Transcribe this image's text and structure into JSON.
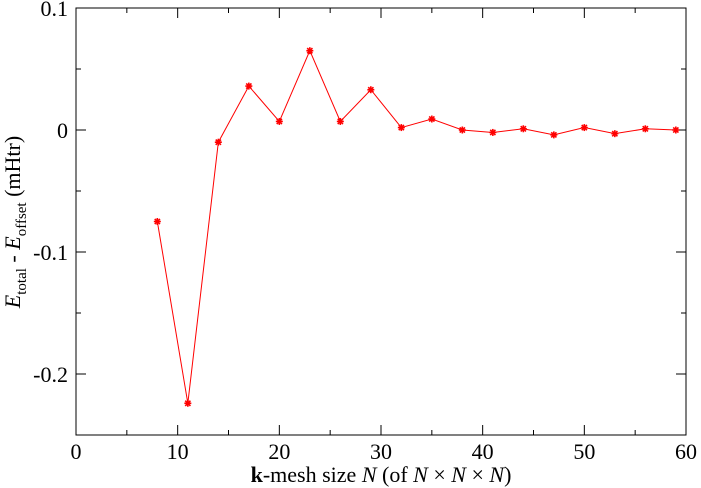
{
  "chart_data": {
    "type": "line",
    "title": "",
    "xlabel": {
      "bold": "k",
      "pre": "-mesh size ",
      "italic1": "N",
      "mid": " (of ",
      "italic2": "N",
      "times1": " × ",
      "italic3": "N",
      "times2": " × ",
      "italic4": "N",
      "post": ")"
    },
    "ylabel": {
      "e1": "E",
      "sub1": "total",
      "minus": " - ",
      "e2": "E",
      "sub2": "offset",
      "unit": " (mHtr)"
    },
    "xlim": [
      0,
      60
    ],
    "ylim": [
      -0.25,
      0.1
    ],
    "xticks": [
      0,
      10,
      20,
      30,
      40,
      50,
      60
    ],
    "xtick_labels": [
      "0",
      "10",
      "20",
      "30",
      "40",
      "50",
      "60"
    ],
    "yticks": [
      0.1,
      0,
      -0.1,
      -0.2
    ],
    "ytick_labels": [
      "0.1",
      "0",
      "-0.1",
      "-0.2"
    ],
    "grid": false,
    "series": [
      {
        "color": "#ff0000",
        "marker": "star",
        "x": [
          8,
          11,
          14,
          17,
          20,
          23,
          26,
          29,
          32,
          35,
          38,
          41,
          44,
          47,
          50,
          53,
          56,
          59
        ],
        "y": [
          -0.075,
          -0.224,
          -0.01,
          0.036,
          0.007,
          0.065,
          0.007,
          0.033,
          0.002,
          0.009,
          0.0,
          -0.002,
          0.001,
          -0.004,
          0.002,
          -0.003,
          0.001,
          0.0
        ]
      }
    ]
  }
}
